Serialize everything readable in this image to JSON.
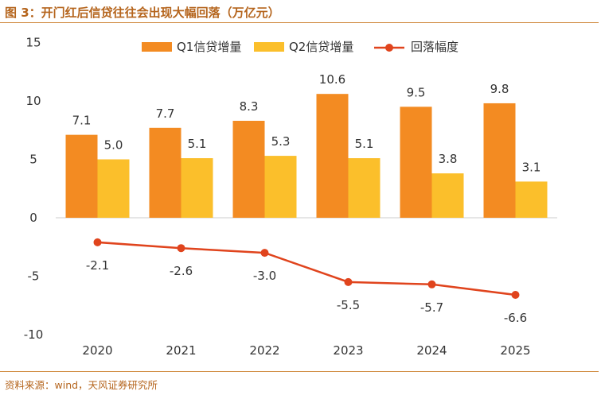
{
  "title": "图 3：开门红后信贷往往会出现大幅回落（万亿元）",
  "source": "资料来源：wind，天风证券研究所",
  "colors": {
    "q1": "#f38b22",
    "q2": "#fbbf2b",
    "drop": "#e0441d",
    "axis": "#cccccc",
    "title": "#b5651d"
  },
  "chart_data": {
    "type": "bar",
    "categories": [
      "2020",
      "2021",
      "2022",
      "2023",
      "2024",
      "2025"
    ],
    "series": [
      {
        "name": "Q1信贷增量",
        "type": "bar",
        "values": [
          7.1,
          7.7,
          8.3,
          10.6,
          9.5,
          9.8
        ],
        "labels": [
          "7.1",
          "7.7",
          "8.3",
          "10.6",
          "9.5",
          "9.8"
        ]
      },
      {
        "name": "Q2信贷增量",
        "type": "bar",
        "values": [
          5.0,
          5.1,
          5.3,
          5.1,
          3.8,
          3.1
        ],
        "labels": [
          "5.0",
          "5.1",
          "5.3",
          "5.1",
          "3.8",
          "3.1"
        ]
      },
      {
        "name": "回落幅度",
        "type": "line",
        "values": [
          -2.1,
          -2.6,
          -3.0,
          -5.5,
          -5.7,
          -6.6
        ],
        "labels": [
          "-2.1",
          "-2.6",
          "-3.0",
          "-5.5",
          "-5.7",
          "-6.6"
        ]
      }
    ],
    "ylim": [
      -10,
      15
    ],
    "yticks": [
      "15",
      "10",
      "5",
      "0",
      "-5",
      "-10"
    ],
    "ytick_values": [
      15,
      10,
      5,
      0,
      -5,
      -10
    ],
    "legend_position": "top",
    "grid": false
  }
}
